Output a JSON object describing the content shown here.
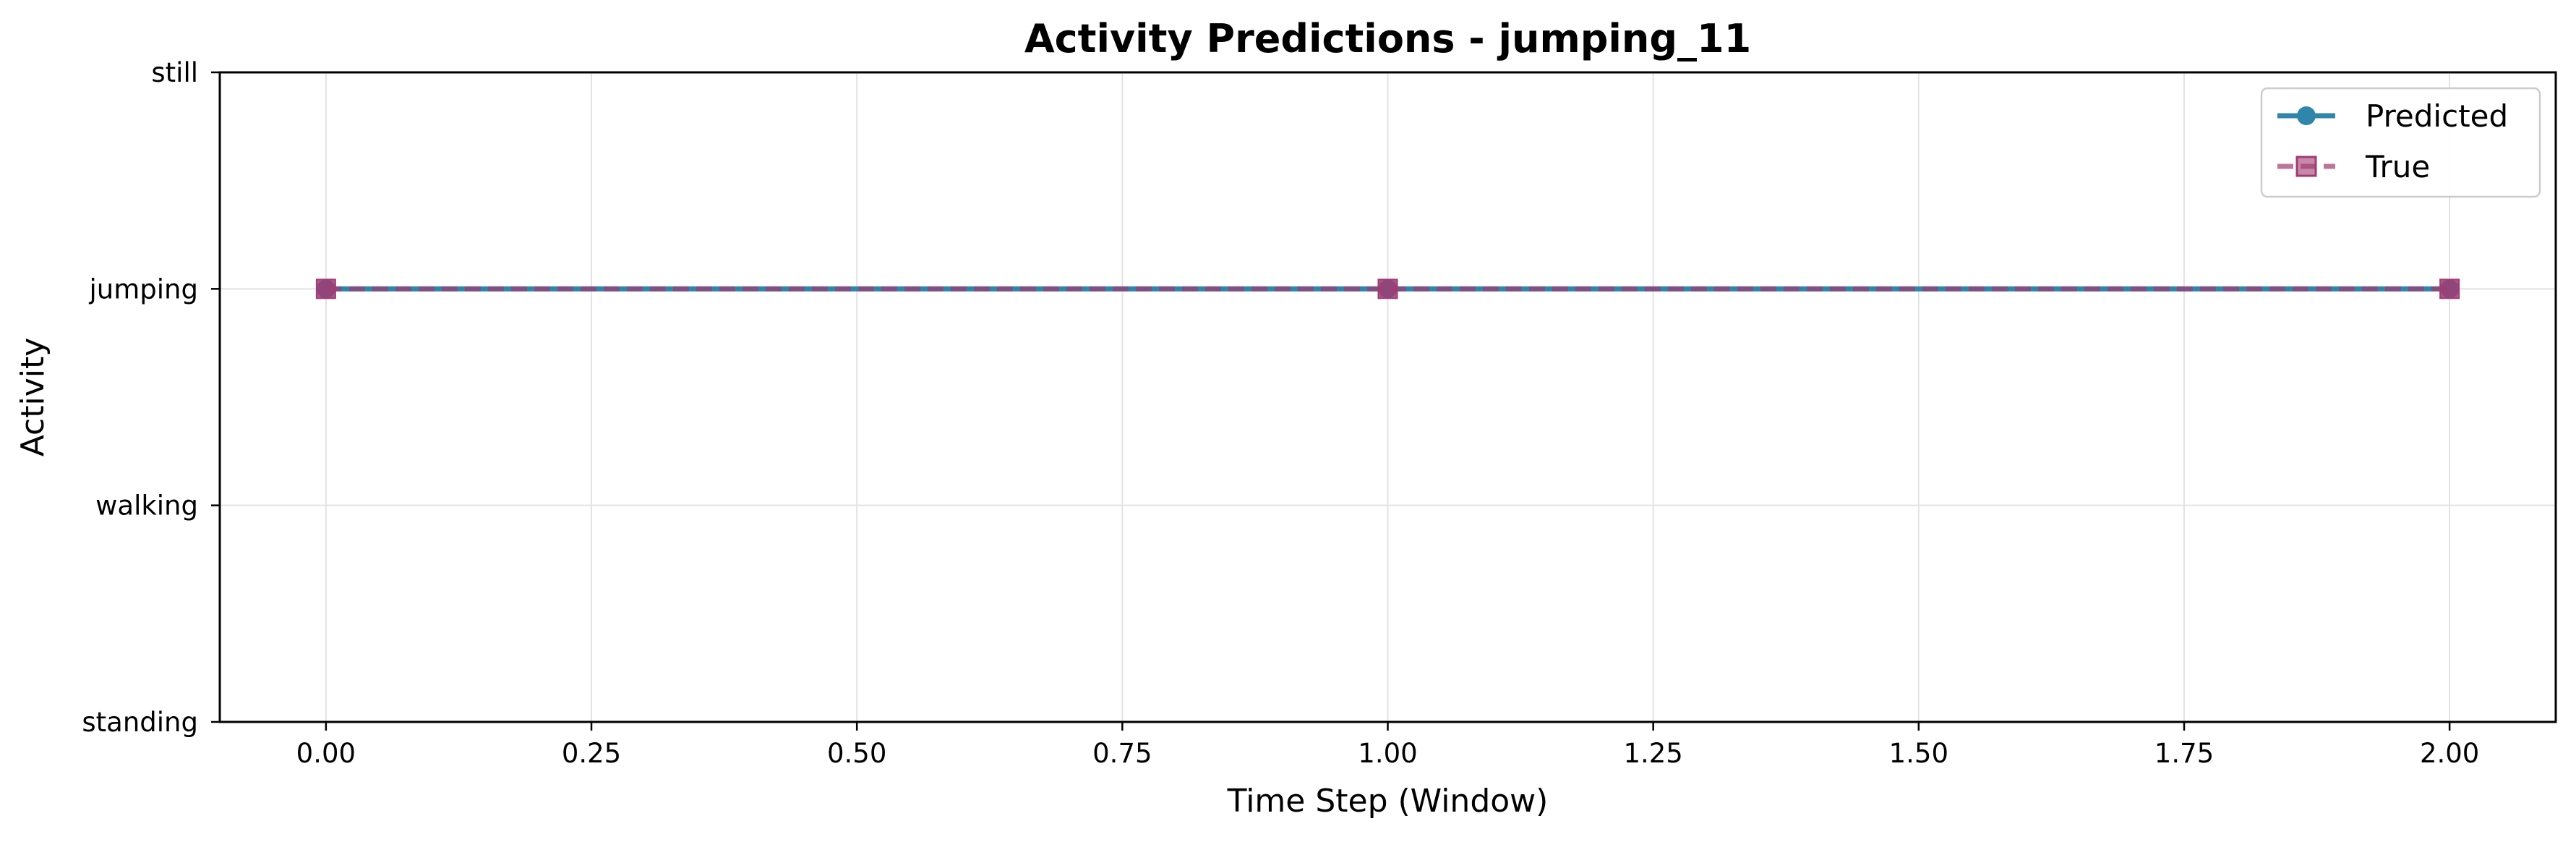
{
  "chart_data": {
    "type": "line",
    "title": "Activity Predictions - jumping_11",
    "xlabel": "Time Step (Window)",
    "ylabel": "Activity",
    "xlim": [
      -0.1,
      2.1
    ],
    "ylim": [
      0,
      3
    ],
    "x_ticks": [
      0.0,
      0.25,
      0.5,
      0.75,
      1.0,
      1.25,
      1.5,
      1.75,
      2.0
    ],
    "x_tick_labels": [
      "0.00",
      "0.25",
      "0.50",
      "0.75",
      "1.00",
      "1.25",
      "1.50",
      "1.75",
      "2.00"
    ],
    "y_ticks": [
      0,
      1,
      2,
      3
    ],
    "y_tick_labels": [
      "standing",
      "walking",
      "jumping",
      "still"
    ],
    "grid": true,
    "legend_position": "top-right",
    "x": [
      0,
      1,
      2
    ],
    "series": [
      {
        "name": "Predicted",
        "values": [
          2,
          2,
          2
        ],
        "color": "#2E86AB",
        "marker": "circle",
        "linestyle": "solid"
      },
      {
        "name": "True",
        "values": [
          2,
          2,
          2
        ],
        "color": "#A23B72",
        "marker": "square",
        "linestyle": "dashed"
      }
    ]
  }
}
